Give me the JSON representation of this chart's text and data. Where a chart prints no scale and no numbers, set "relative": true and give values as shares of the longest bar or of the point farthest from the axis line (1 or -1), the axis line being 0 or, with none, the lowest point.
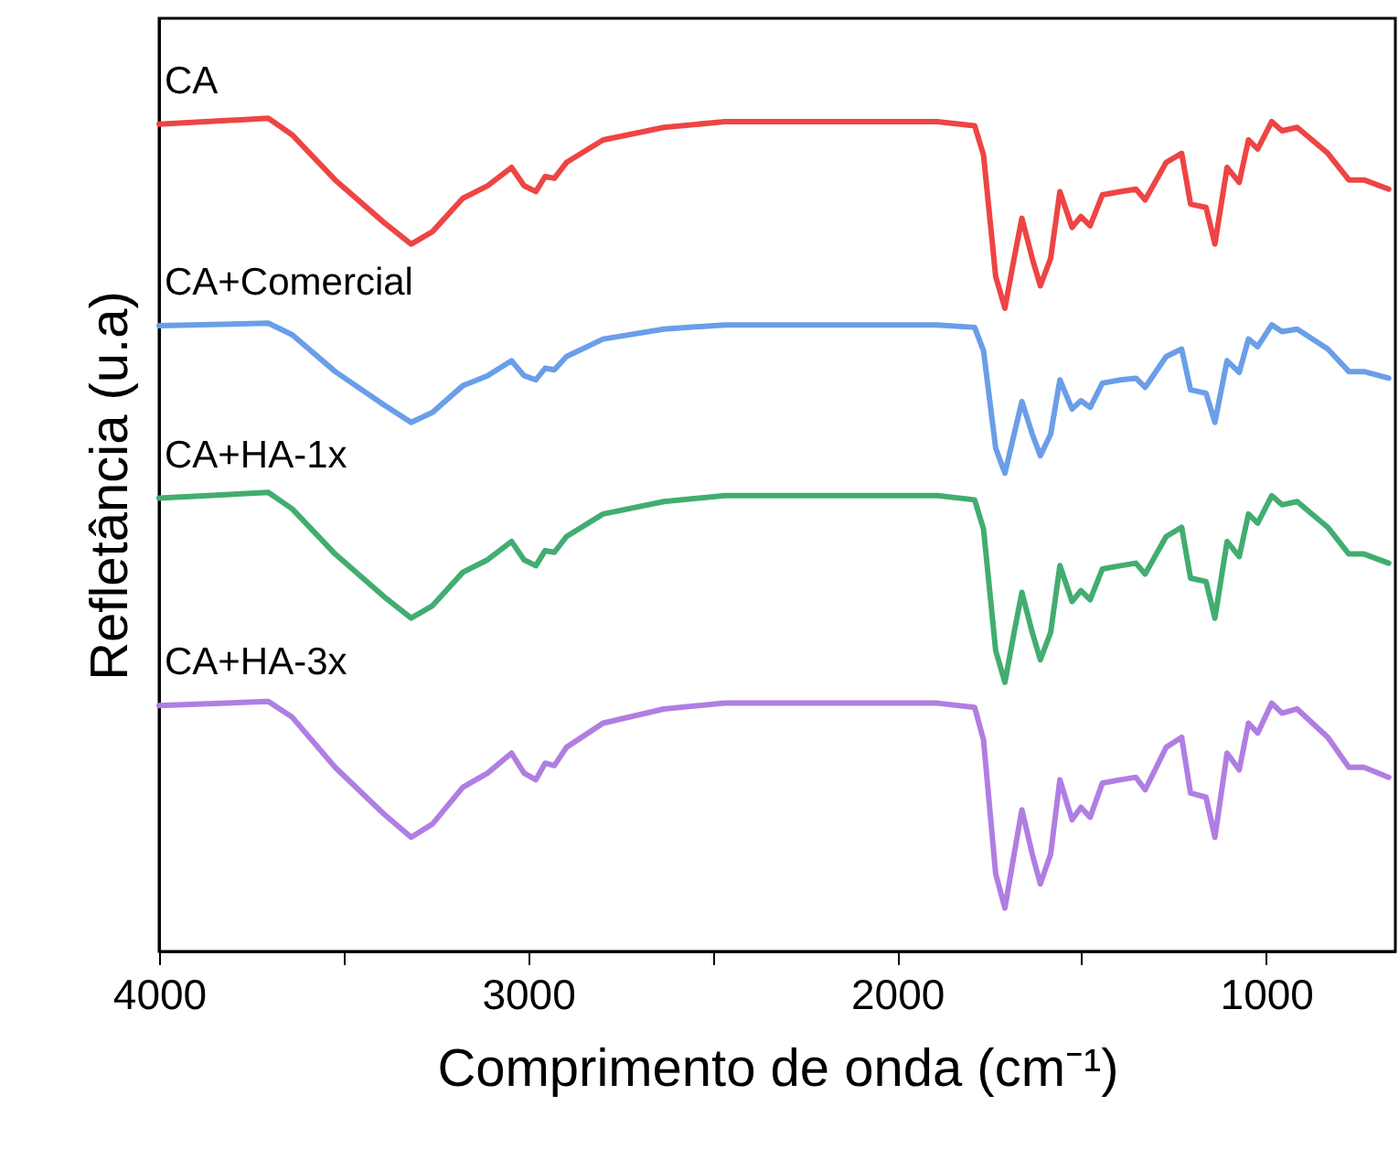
{
  "chart_data": {
    "type": "line",
    "xlabel": "Comprimento de onda (cm⁻¹)",
    "ylabel": "Refletância (u.a)",
    "relative": true,
    "legend": false,
    "grid": false,
    "marker": "none",
    "line_style": "solid",
    "xlim": [
      4000,
      650
    ],
    "xticks": [
      4000,
      {
        "value": 3500,
        "label": null
      },
      3000,
      {
        "value": 2500,
        "label": null
      },
      2000,
      {
        "value": 1500,
        "label": null
      },
      1000
    ],
    "x": [
      4000,
      3704,
      3639,
      3523,
      3391,
      3317,
      3259,
      3177,
      3110,
      3045,
      3011,
      2979,
      2954,
      2929,
      2896,
      2797,
      2632,
      2467,
      1891,
      1790,
      1766,
      1733,
      1708,
      1683,
      1662,
      1634,
      1612,
      1584,
      1559,
      1526,
      1502,
      1477,
      1444,
      1395,
      1353,
      1328,
      1271,
      1229,
      1205,
      1163,
      1139,
      1106,
      1073,
      1048,
      1023,
      985,
      957,
      916,
      833,
      776,
      735,
      668
    ],
    "series": [
      {
        "name": "CA",
        "color": "#ee4444",
        "values": [
          0.993,
          1.0,
          0.98,
          0.926,
          0.875,
          0.849,
          0.864,
          0.904,
          0.919,
          0.941,
          0.919,
          0.912,
          0.93,
          0.928,
          0.947,
          0.974,
          0.989,
          0.996,
          0.996,
          0.991,
          0.956,
          0.81,
          0.772,
          0.832,
          0.88,
          0.832,
          0.799,
          0.832,
          0.912,
          0.869,
          0.882,
          0.871,
          0.908,
          0.912,
          0.915,
          0.902,
          0.947,
          0.958,
          0.897,
          0.893,
          0.849,
          0.941,
          0.923,
          0.974,
          0.963,
          0.996,
          0.985,
          0.989,
          0.958,
          0.926,
          0.926,
          0.915
        ]
      },
      {
        "name": "CA+Comercial",
        "color": "#6a9ee8",
        "values": [
          0.751,
          0.754,
          0.74,
          0.696,
          0.656,
          0.635,
          0.647,
          0.679,
          0.691,
          0.709,
          0.691,
          0.686,
          0.7,
          0.698,
          0.714,
          0.735,
          0.747,
          0.752,
          0.752,
          0.749,
          0.721,
          0.604,
          0.574,
          0.621,
          0.66,
          0.621,
          0.595,
          0.621,
          0.686,
          0.651,
          0.661,
          0.653,
          0.682,
          0.686,
          0.688,
          0.677,
          0.714,
          0.723,
          0.674,
          0.67,
          0.635,
          0.709,
          0.695,
          0.735,
          0.726,
          0.752,
          0.744,
          0.747,
          0.723,
          0.696,
          0.696,
          0.688
        ]
      },
      {
        "name": "CA+HA-1x",
        "color": "#42ad70",
        "values": [
          0.544,
          0.551,
          0.531,
          0.477,
          0.426,
          0.4,
          0.415,
          0.455,
          0.47,
          0.492,
          0.47,
          0.463,
          0.481,
          0.479,
          0.498,
          0.525,
          0.54,
          0.547,
          0.547,
          0.542,
          0.507,
          0.361,
          0.323,
          0.383,
          0.431,
          0.383,
          0.35,
          0.383,
          0.463,
          0.42,
          0.433,
          0.422,
          0.459,
          0.463,
          0.466,
          0.453,
          0.498,
          0.509,
          0.448,
          0.444,
          0.4,
          0.492,
          0.474,
          0.525,
          0.514,
          0.547,
          0.536,
          0.54,
          0.509,
          0.477,
          0.477,
          0.466
        ]
      },
      {
        "name": "CA+HA-3x",
        "color": "#b07ee2",
        "values": [
          0.295,
          0.3,
          0.281,
          0.221,
          0.165,
          0.137,
          0.153,
          0.197,
          0.214,
          0.238,
          0.214,
          0.206,
          0.226,
          0.223,
          0.245,
          0.274,
          0.291,
          0.298,
          0.298,
          0.293,
          0.254,
          0.093,
          0.052,
          0.117,
          0.17,
          0.117,
          0.081,
          0.117,
          0.206,
          0.158,
          0.173,
          0.161,
          0.202,
          0.206,
          0.209,
          0.194,
          0.245,
          0.257,
          0.19,
          0.185,
          0.137,
          0.238,
          0.218,
          0.274,
          0.262,
          0.298,
          0.286,
          0.291,
          0.257,
          0.221,
          0.221,
          0.209
        ]
      }
    ]
  }
}
